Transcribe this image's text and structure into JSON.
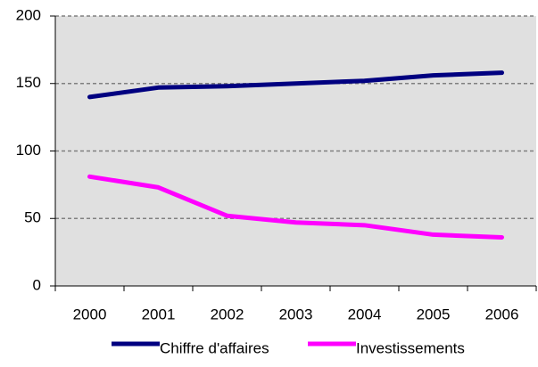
{
  "chart_data": {
    "type": "line",
    "categories": [
      "2000",
      "2001",
      "2002",
      "2003",
      "2004",
      "2005",
      "2006"
    ],
    "series": [
      {
        "name": "Chiffre d'affaires",
        "color": "#000080",
        "values": [
          140,
          147,
          148,
          150,
          152,
          156,
          158
        ]
      },
      {
        "name": "Investissements",
        "color": "#ff00ff",
        "values": [
          81,
          73,
          52,
          47,
          45,
          38,
          36
        ]
      }
    ],
    "ylim": [
      0,
      200
    ],
    "yticks": [
      0,
      50,
      100,
      150,
      200
    ],
    "grid": true,
    "legend": "bottom"
  }
}
